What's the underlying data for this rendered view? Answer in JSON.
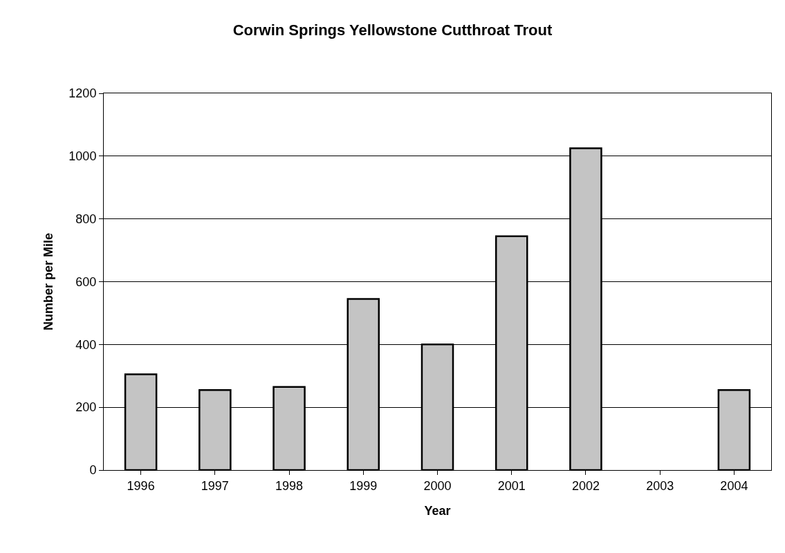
{
  "chart_data": {
    "type": "bar",
    "title": "Corwin Springs Yellowstone Cutthroat Trout",
    "xlabel": "Year",
    "ylabel": "Number per Mile",
    "categories": [
      "1996",
      "1997",
      "1998",
      "1999",
      "2000",
      "2001",
      "2002",
      "2003",
      "2004"
    ],
    "values": [
      305,
      255,
      265,
      545,
      400,
      745,
      1025,
      null,
      255
    ],
    "color": "#c4c4c4",
    "ylim": [
      0,
      1200
    ],
    "yticks": [
      0,
      200,
      400,
      600,
      800,
      1000,
      1200
    ],
    "grid": "y",
    "legend": false
  }
}
